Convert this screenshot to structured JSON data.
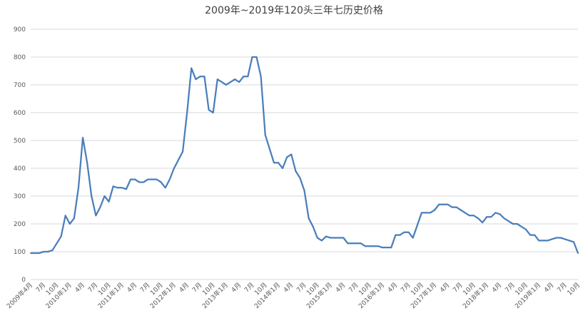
{
  "chart_data": {
    "type": "line",
    "title": "2009年~2019年120头三年七历史价格",
    "xlabel": "",
    "ylabel": "",
    "ylim": [
      0,
      900
    ],
    "y_ticks": [
      0,
      100,
      200,
      300,
      400,
      500,
      600,
      700,
      800,
      900
    ],
    "grid": true,
    "legend": "none",
    "line_color": "#4a7ebb",
    "x_tick_labels": [
      "2009年4月",
      "7月",
      "10月",
      "2010年1月",
      "4月",
      "7月",
      "10月",
      "2011年1月",
      "4月",
      "7月",
      "10月",
      "2012年1月",
      "4月",
      "7月",
      "10月",
      "2013年1月",
      "4月",
      "7月",
      "10月",
      "2014年1月",
      "4月",
      "7月",
      "10月",
      "2015年1月",
      "4月",
      "7月",
      "10月",
      "2016年1月",
      "4月",
      "7月",
      "10月",
      "2017年1月",
      "4月",
      "7月",
      "10月",
      "2018年1月",
      "4月",
      "7月",
      "10月",
      "2019年1月",
      "4月",
      "7月",
      "10月"
    ],
    "series": [
      {
        "values": [
          95,
          95,
          95,
          100,
          100,
          105,
          130,
          155,
          230,
          200,
          220,
          330,
          510,
          420,
          300,
          230,
          260,
          300,
          280,
          335,
          330,
          330,
          325,
          360,
          360,
          350,
          350,
          360,
          360,
          360,
          350,
          330,
          360,
          400,
          430,
          460,
          600,
          760,
          720,
          730,
          730,
          610,
          600,
          720,
          710,
          700,
          710,
          720,
          710,
          730,
          730,
          800,
          800,
          730,
          520,
          470,
          420,
          420,
          400,
          440,
          450,
          390,
          365,
          320,
          220,
          190,
          150,
          140,
          155,
          150,
          150,
          150,
          150,
          130,
          130,
          130,
          130,
          120,
          120,
          120,
          120,
          115,
          115,
          115,
          160,
          160,
          170,
          170,
          150,
          195,
          240,
          240,
          240,
          250,
          270,
          270,
          270,
          260,
          260,
          250,
          240,
          230,
          230,
          220,
          205,
          225,
          225,
          240,
          235,
          220,
          210,
          200,
          200,
          190,
          180,
          160,
          160,
          140,
          140,
          140,
          145,
          150,
          150,
          145,
          140,
          135,
          95
        ]
      }
    ]
  }
}
